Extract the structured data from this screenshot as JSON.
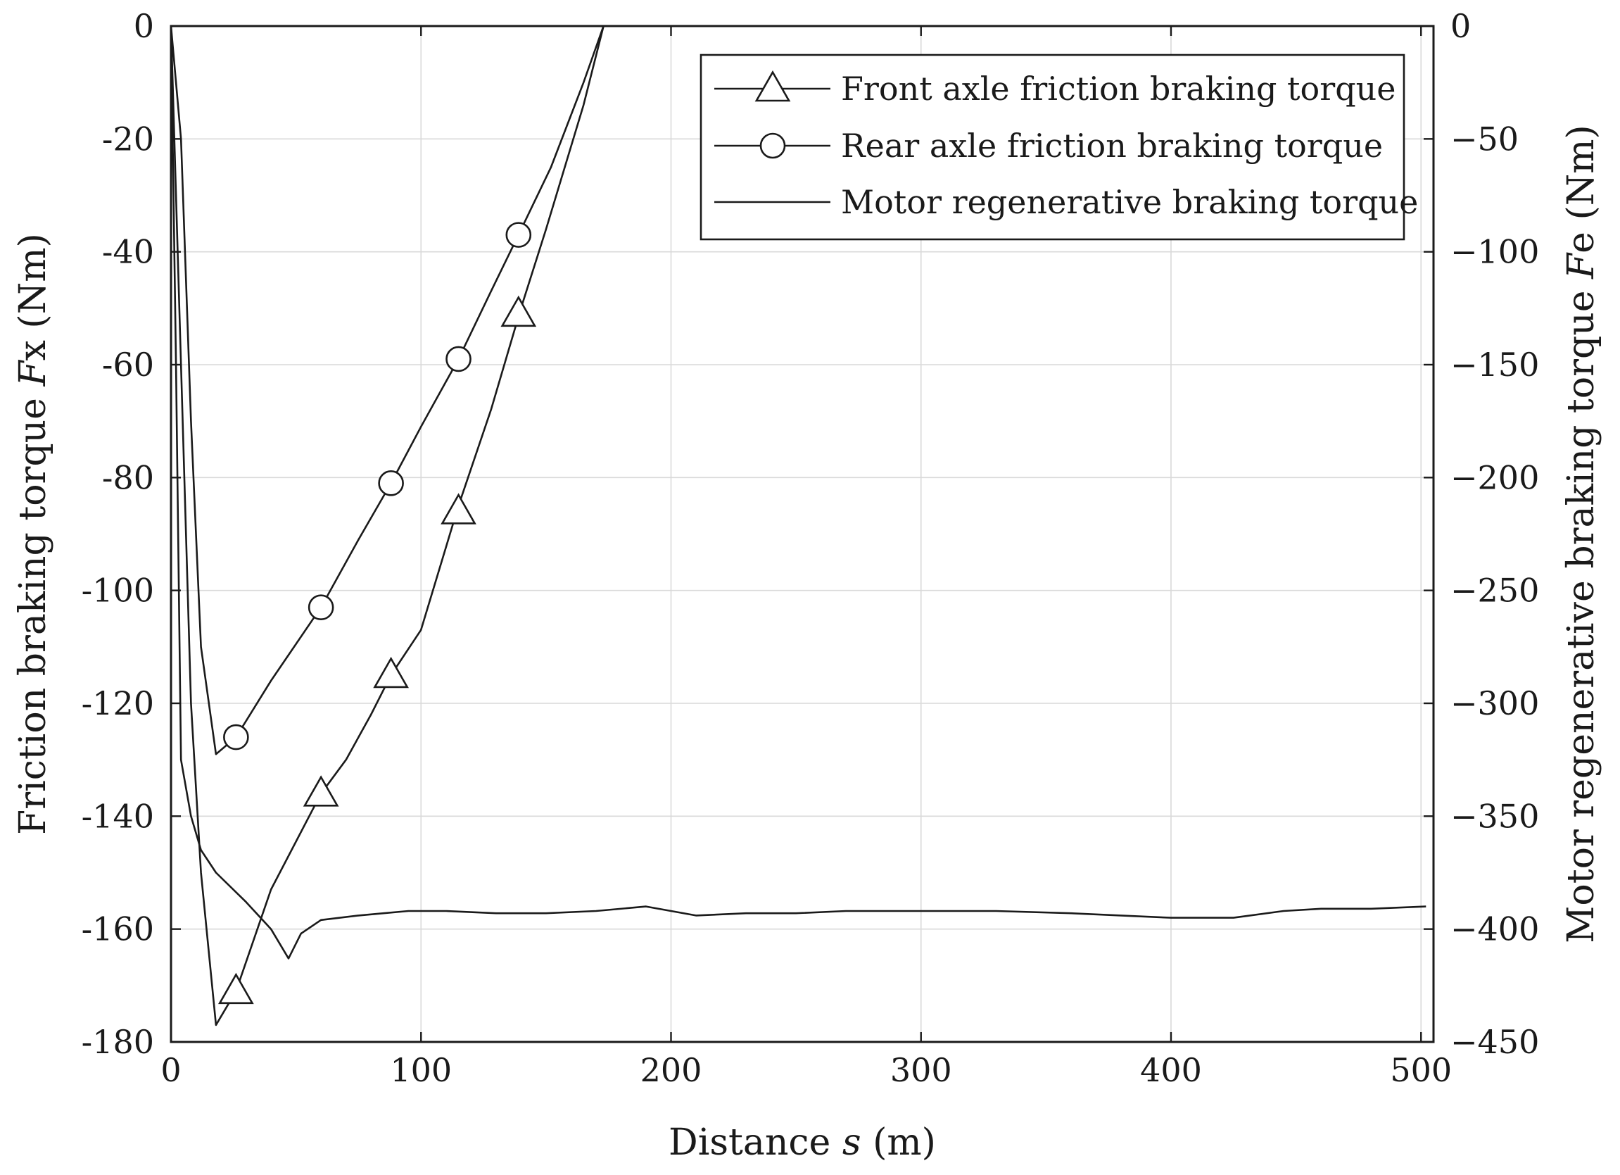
{
  "chart_data": {
    "type": "line",
    "xlabel": "Distance s (m)",
    "xlabel_parts": {
      "pre": "Distance ",
      "var": "s",
      "post": " (m)"
    },
    "ylabel": "Friction braking torque Fx (Nm)",
    "ylabel_parts": {
      "pre": "Friction braking torque ",
      "var": "F",
      "post": "x (Nm)"
    },
    "y2label": "Motor regenerative braking torque Fe (Nm)",
    "y2label_parts": {
      "pre": "Motor regenerative braking torque ",
      "var": "F",
      "post": "e (Nm)"
    },
    "xlim": [
      0,
      505
    ],
    "ylim": [
      -180,
      0
    ],
    "y2lim": [
      -450,
      0
    ],
    "xticks": [
      0,
      100,
      200,
      300,
      400,
      500
    ],
    "xtick_labels": [
      "0",
      "100",
      "200",
      "300",
      "400",
      "500"
    ],
    "yticks": [
      0,
      -20,
      -40,
      -60,
      -80,
      -100,
      -120,
      -140,
      -160,
      -180
    ],
    "ytick_labels": [
      "0",
      "-20",
      "-40",
      "-60",
      "-80",
      "-100",
      "-120",
      "-140",
      "-160",
      "-180"
    ],
    "y2ticks": [
      0,
      -50,
      -100,
      -150,
      -200,
      -250,
      -300,
      -350,
      -400,
      -450
    ],
    "y2tick_labels": [
      "0",
      "−50",
      "−100",
      "−150",
      "−200",
      "−250",
      "−300",
      "−350",
      "−400",
      "−450"
    ],
    "grid": true,
    "legend_position": "top-right",
    "series": [
      {
        "name": "Front axle friction braking torque",
        "axis": "left",
        "marker": "triangle",
        "x": [
          0,
          4,
          8,
          12,
          18,
          26,
          40,
          60,
          70,
          80,
          88,
          100,
          115,
          128,
          140,
          150,
          165,
          173
        ],
        "y": [
          0,
          -60,
          -120,
          -150,
          -177,
          -171,
          -153,
          -136,
          -130,
          -122,
          -115,
          -107,
          -85,
          -68,
          -50,
          -36,
          -14,
          0
        ],
        "marker_x": [
          26,
          60,
          88,
          115,
          139
        ],
        "marker_y": [
          -171,
          -136,
          -115,
          -86,
          -51
        ]
      },
      {
        "name": "Rear axle friction braking torque",
        "axis": "left",
        "marker": "circle",
        "x": [
          0,
          4,
          8,
          12,
          18,
          26,
          40,
          60,
          75,
          88,
          100,
          115,
          128,
          139,
          152,
          165,
          173
        ],
        "y": [
          0,
          -20,
          -70,
          -110,
          -129,
          -126,
          -116,
          -103,
          -91,
          -81,
          -71,
          -59,
          -47,
          -37,
          -25,
          -10,
          0
        ],
        "marker_x": [
          26,
          60,
          88,
          115,
          139
        ],
        "marker_y": [
          -126,
          -103,
          -81,
          -59,
          -37
        ]
      },
      {
        "name": "Motor regenerative braking torque",
        "axis": "right",
        "marker": "none",
        "x": [
          0,
          2,
          4,
          8,
          12,
          18,
          30,
          40,
          47,
          52,
          60,
          75,
          85,
          95,
          110,
          130,
          150,
          170,
          190,
          200,
          210,
          230,
          250,
          270,
          300,
          330,
          360,
          380,
          400,
          425,
          445,
          460,
          480,
          502
        ],
        "y": [
          0,
          -150,
          -325,
          -350,
          -365,
          -375,
          -388,
          -400,
          -413,
          -402,
          -396,
          -394,
          -393,
          -392,
          -392,
          -393,
          -393,
          -392,
          -390,
          -392,
          -394,
          -393,
          -393,
          -392,
          -392,
          -392,
          -393,
          -394,
          -395,
          -395,
          -392,
          -391,
          -391,
          -390
        ]
      }
    ]
  }
}
